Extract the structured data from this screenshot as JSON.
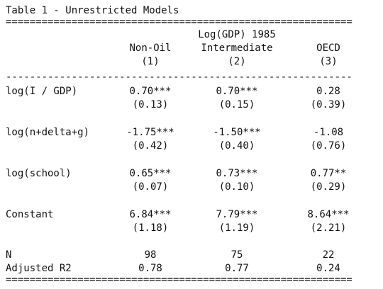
{
  "title": "Table 1 - Unrestricted Models",
  "rules": {
    "double": "==========================================================",
    "single": "----------------------------------------------------------"
  },
  "header": {
    "group_label": "Log(GDP) 1985",
    "columns": [
      {
        "name": "Non-Oil",
        "num": "(1)"
      },
      {
        "name": "Intermediate",
        "num": "(2)"
      },
      {
        "name": "OECD",
        "num": "(3)"
      }
    ]
  },
  "rows": [
    {
      "label": "log(I / GDP)",
      "est": [
        "0.70***",
        "0.70***",
        "0.28"
      ],
      "se": [
        "(0.13)",
        "(0.15)",
        "(0.39)"
      ]
    },
    {
      "label": "log(n+delta+g)",
      "est": [
        "-1.75***",
        "-1.50***",
        "-1.08"
      ],
      "se": [
        "(0.42)",
        "(0.40)",
        "(0.76)"
      ]
    },
    {
      "label": "log(school)",
      "est": [
        "0.65***",
        "0.73***",
        "0.77**"
      ],
      "se": [
        "(0.07)",
        "(0.10)",
        "(0.29)"
      ]
    },
    {
      "label": "Constant",
      "est": [
        "6.84***",
        "7.79***",
        "8.64***"
      ],
      "se": [
        "(1.18)",
        "(1.19)",
        "(2.21)"
      ]
    }
  ],
  "stats": [
    {
      "label": "N",
      "values": [
        "98",
        "75",
        "22"
      ]
    },
    {
      "label": "Adjusted R2",
      "values": [
        "0.78",
        "0.77",
        "0.24"
      ]
    }
  ]
}
